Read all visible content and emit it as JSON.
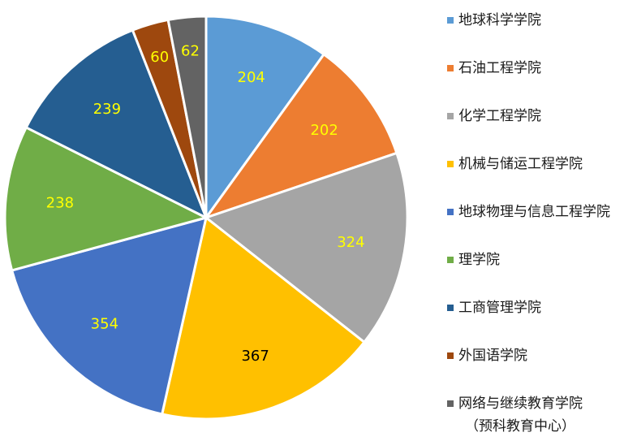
{
  "chart_data": {
    "type": "pie",
    "title": "",
    "slices": [
      {
        "label": "地球科学学院",
        "value": 204,
        "color": "#5B9BD5",
        "label_color": "#FFFF00"
      },
      {
        "label": "石油工程学院",
        "value": 202,
        "color": "#ED7D31",
        "label_color": "#FFFF00"
      },
      {
        "label": "化学工程学院",
        "value": 324,
        "color": "#A5A5A5",
        "label_color": "#FFFF00"
      },
      {
        "label": "机械与储运工程学院",
        "value": 367,
        "color": "#FFC000",
        "label_color": "#000000"
      },
      {
        "label": "地球物理与信息工程学院",
        "value": 354,
        "color": "#4472C4",
        "label_color": "#FFFF00"
      },
      {
        "label": "理学院",
        "value": 238,
        "color": "#70AD47",
        "label_color": "#FFFF00"
      },
      {
        "label": "工商管理学院",
        "value": 239,
        "color": "#255E91",
        "label_color": "#FFFF00"
      },
      {
        "label": "外国语学院",
        "value": 60,
        "color": "#9E480E",
        "label_color": "#FFFF00"
      },
      {
        "label": "网络与继续教育学院",
        "label_sub": "（预科教育中心）",
        "value": 62,
        "color": "#636363",
        "label_color": "#FFFF00"
      }
    ],
    "start_angle": "12 o'clock",
    "direction": "clockwise",
    "legend_position": "right"
  }
}
